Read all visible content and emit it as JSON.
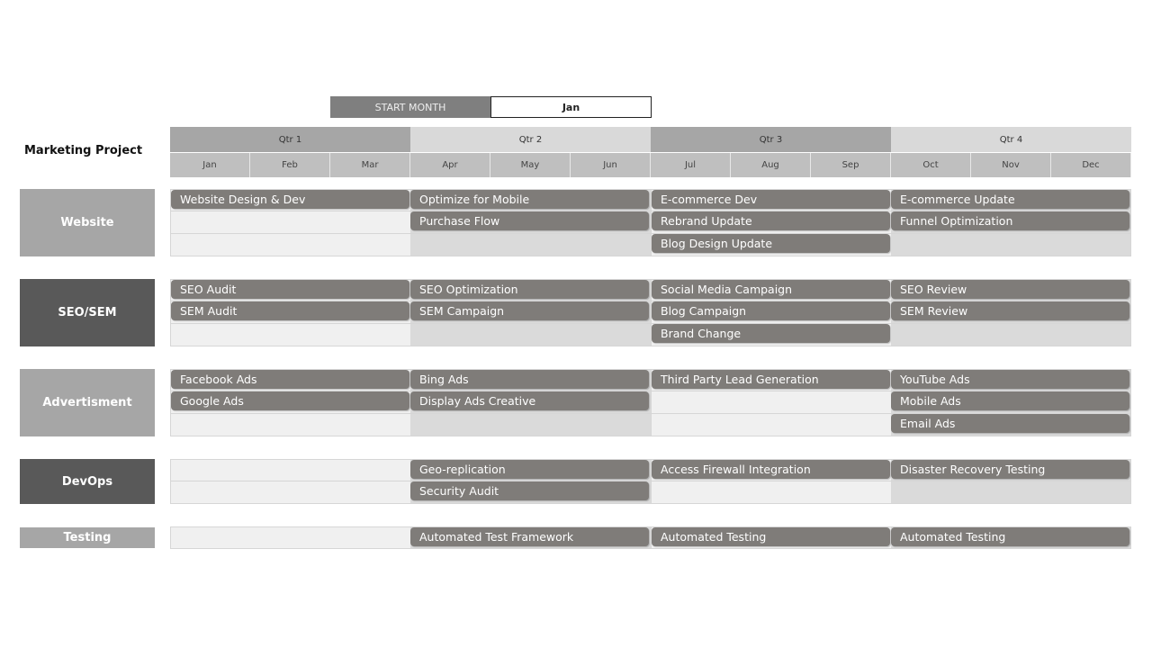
{
  "start_month": {
    "label": "START MONTH",
    "value": "Jan"
  },
  "title": "Marketing Project",
  "quarters": [
    {
      "label": "Qtr 1",
      "color": "#a6a6a6"
    },
    {
      "label": "Qtr 2",
      "color": "#d9d9d9"
    },
    {
      "label": "Qtr 3",
      "color": "#a6a6a6"
    },
    {
      "label": "Qtr 4",
      "color": "#d9d9d9"
    }
  ],
  "months": [
    "Jan",
    "Feb",
    "Mar",
    "Apr",
    "May",
    "Jun",
    "Jul",
    "Aug",
    "Sep",
    "Oct",
    "Nov",
    "Dec"
  ],
  "sections": [
    {
      "name": "Website",
      "color": "#a6a6a6",
      "rows": [
        [
          "Website Design & Dev",
          "Optimize for Mobile",
          "E-commerce Dev",
          "E-commerce Update"
        ],
        [
          null,
          "Purchase Flow",
          "Rebrand Update",
          "Funnel Optimization"
        ],
        [
          null,
          null,
          "Blog Design Update",
          null
        ]
      ]
    },
    {
      "name": "SEO/SEM",
      "color": "#595959",
      "rows": [
        [
          "SEO Audit",
          "SEO Optimization",
          "Social Media Campaign",
          "SEO Review"
        ],
        [
          "SEM Audit",
          "SEM Campaign",
          "Blog Campaign",
          "SEM Review"
        ],
        [
          null,
          null,
          "Brand Change",
          null
        ]
      ]
    },
    {
      "name": "Advertisment",
      "color": "#a6a6a6",
      "rows": [
        [
          "Facebook Ads",
          "Bing Ads",
          "Third Party Lead Generation",
          "YouTube Ads"
        ],
        [
          "Google Ads",
          "Display Ads Creative",
          null,
          "Mobile Ads"
        ],
        [
          null,
          null,
          null,
          "Email Ads"
        ]
      ]
    },
    {
      "name": "DevOps",
      "color": "#595959",
      "rows": [
        [
          null,
          "Geo-replication",
          "Access Firewall Integration",
          "Disaster Recovery Testing"
        ],
        [
          null,
          "Security Audit",
          null,
          null
        ]
      ]
    },
    {
      "name": "Testing",
      "color": "#a6a6a6",
      "rows": [
        [
          null,
          "Automated Test Framework",
          "Automated Testing",
          "Automated Testing"
        ]
      ]
    }
  ]
}
